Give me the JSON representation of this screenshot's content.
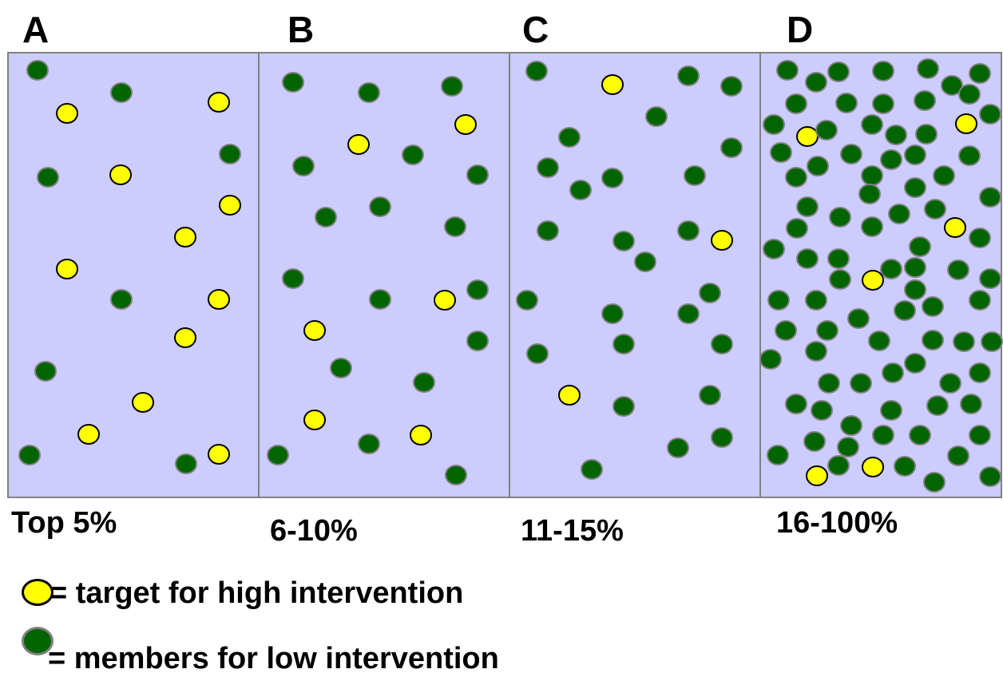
{
  "panels": [
    {
      "letter": "A",
      "label": "Top 5%"
    },
    {
      "letter": "B",
      "label": "6-10%"
    },
    {
      "letter": "C",
      "label": "11-15%"
    },
    {
      "letter": "D",
      "label": "16-100%"
    }
  ],
  "legend": {
    "target_text": "= target for high intervention",
    "member_text": "= members for low intervention"
  },
  "colors": {
    "panel_fill": "#ccccff",
    "panel_border": "#808080",
    "target_fill": "#ffff00",
    "target_border": "#000000",
    "member_fill": "#006400",
    "member_border": "#808080"
  }
}
